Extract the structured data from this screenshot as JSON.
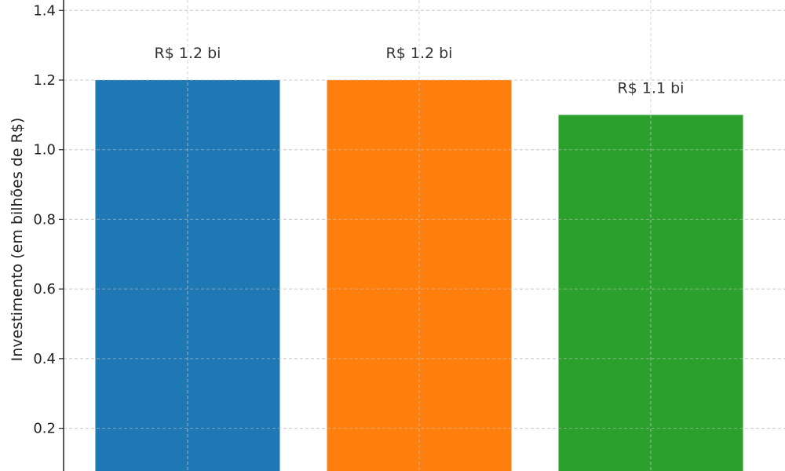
{
  "chart_data": {
    "type": "bar",
    "title": "",
    "xlabel": "",
    "ylabel": "Investimento (em bilhões de R$)",
    "ylim": [
      0.0,
      1.4
    ],
    "yticks": [
      "0.2",
      "0.4",
      "0.6",
      "0.8",
      "1.0",
      "1.2",
      "1.4"
    ],
    "grid": true,
    "values": [
      1.2,
      1.2,
      1.1
    ],
    "data_labels": [
      "R$ 1.2 bi",
      "R$ 1.2 bi",
      "R$ 1.1 bi"
    ],
    "colors": [
      "#1f77b4",
      "#ff7f0e",
      "#2ca02c"
    ]
  }
}
